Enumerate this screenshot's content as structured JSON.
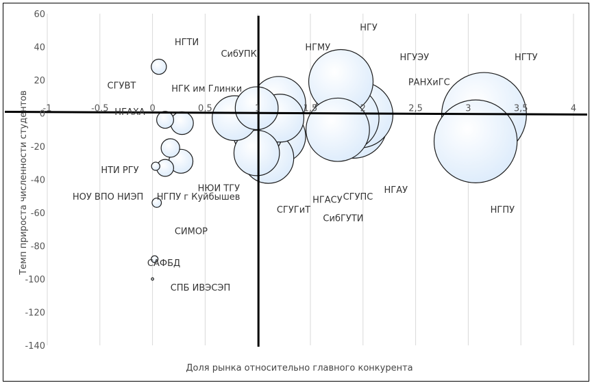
{
  "chart_data": {
    "type": "bubble",
    "title": "",
    "xlabel": "Доля рынка относительно главного конкурента",
    "ylabel": "Темп прироста численности студентов",
    "xlim": [
      -1,
      4
    ],
    "ylim": [
      -140,
      60
    ],
    "x_ticks": [
      "-1",
      "-0,5",
      "0",
      "0,5",
      "1",
      "1,5",
      "2",
      "2,5",
      "3",
      "3,5",
      "4"
    ],
    "y_ticks": [
      "60",
      "40",
      "20",
      "0",
      "-20",
      "-40",
      "-60",
      "-80",
      "-100",
      "-120",
      "-140"
    ],
    "grid": "vertical",
    "legend": "none",
    "colors": {
      "bubble_fill": "#dcebfb",
      "bubble_stroke": "#1a1a1a",
      "axis": "#000000",
      "grid": "#d9d9d9"
    },
    "points": [
      {
        "label": "НГТИ",
        "x": 0.06,
        "y": 28,
        "size": 0.4
      },
      {
        "label": "СГУВТ",
        "x": 0.12,
        "y": -4,
        "size": 0.5
      },
      {
        "label": "НГАХА",
        "x": 0.28,
        "y": -6,
        "size": 0.9
      },
      {
        "label": "НГК им Глинки",
        "x": 0.17,
        "y": -21,
        "size": 0.6
      },
      {
        "label": "НТИ РГУ",
        "x": 0.03,
        "y": -32,
        "size": 0.12
      },
      {
        "label": "НОУ ВПО НИЭП",
        "x": 0.12,
        "y": -33,
        "size": 0.5
      },
      {
        "label": "НГПУ г Куйбышев",
        "x": 0.27,
        "y": -29,
        "size": 1.0
      },
      {
        "label": "СИМОР",
        "x": 0.04,
        "y": -54,
        "size": 0.15
      },
      {
        "label": "САФБД",
        "x": 0.02,
        "y": -88,
        "size": 0.08
      },
      {
        "label": "СПБ ИВЭСЭП",
        "x": 0.0,
        "y": -100,
        "size": 0.01
      },
      {
        "label": "СибУПК",
        "x": 1.2,
        "y": 6,
        "size": 5.0
      },
      {
        "label": "НЮИ ТГУ",
        "x": 0.78,
        "y": -3,
        "size": 3.5
      },
      {
        "label": "СГУГиТ",
        "x": 1.0,
        "y": -12,
        "size": 4.2
      },
      {
        "label": "НГАСУ",
        "x": 1.21,
        "y": -3,
        "size": 4.0
      },
      {
        "label": "НГУ",
        "x": 0.99,
        "y": -24,
        "size": 3.6
      },
      {
        "label": "НГМУ",
        "x": 1.2,
        "y": -14,
        "size": 5.0
      },
      {
        "label": "СГУПС",
        "x": 1.1,
        "y": -27,
        "size": 4.5
      },
      {
        "label": "НГАУ",
        "x": 0.99,
        "y": 3,
        "size": 3.2
      },
      {
        "label": "СибГУТИ",
        "x": 1.79,
        "y": 19,
        "size": 7.2
      },
      {
        "label": "НГУЭУ",
        "x": 1.76,
        "y": -10,
        "size": 7.0
      },
      {
        "label": "РАНХиГС",
        "x": 1.84,
        "y": -3,
        "size": 7.5
      },
      {
        "label": "НГТУ",
        "x": 1.91,
        "y": -7,
        "size": 7.8
      },
      {
        "label": "НГПУ",
        "x": 1.97,
        "y": -1,
        "size": 7.6
      },
      {
        "label": "НГТУ",
        "x": 3.07,
        "y": -17,
        "size": 12.0
      },
      {
        "label": "НГПУ",
        "x": 3.15,
        "y": -1,
        "size": 12.5
      }
    ],
    "labels": [
      {
        "text": "НГТИ",
        "x": 0.21,
        "y": 43
      },
      {
        "text": "СГУВТ",
        "x": -0.43,
        "y": 17
      },
      {
        "text": "НГАХА",
        "x": -0.36,
        "y": 1
      },
      {
        "text": "НГК им Глинки",
        "x": 0.18,
        "y": 15
      },
      {
        "text": "НТИ РГУ",
        "x": -0.49,
        "y": -34
      },
      {
        "text": "НОУ ВПО НИЭП",
        "x": -0.76,
        "y": -50
      },
      {
        "text": "НГПУ г Куйбышев",
        "x": 0.04,
        "y": -50
      },
      {
        "text": "СИМОР",
        "x": 0.21,
        "y": -71
      },
      {
        "text": "САФБД",
        "x": -0.05,
        "y": -90
      },
      {
        "text": "СПБ ИВЭСЭП",
        "x": 0.17,
        "y": -105
      },
      {
        "text": "СибУПК",
        "x": 0.65,
        "y": 36
      },
      {
        "text": "НЮИ ТГУ",
        "x": 0.43,
        "y": -45
      },
      {
        "text": "СГУГиТ",
        "x": 1.18,
        "y": -58
      },
      {
        "text": "НГАСУ",
        "x": 1.52,
        "y": -52
      },
      {
        "text": "НГУ",
        "x": 1.97,
        "y": 52
      },
      {
        "text": "НГМУ",
        "x": 1.45,
        "y": 40
      },
      {
        "text": "СГУПС",
        "x": 1.81,
        "y": -50
      },
      {
        "text": "НГАУ",
        "x": 2.2,
        "y": -46
      },
      {
        "text": "СибГУТИ",
        "x": 1.62,
        "y": -63
      },
      {
        "text": "НГУЭУ",
        "x": 2.35,
        "y": 34
      },
      {
        "text": "РАНХиГС",
        "x": 2.43,
        "y": 19
      },
      {
        "text": "НГТУ",
        "x": 3.44,
        "y": 34
      },
      {
        "text": "НГПУ",
        "x": 3.21,
        "y": -58
      }
    ]
  }
}
